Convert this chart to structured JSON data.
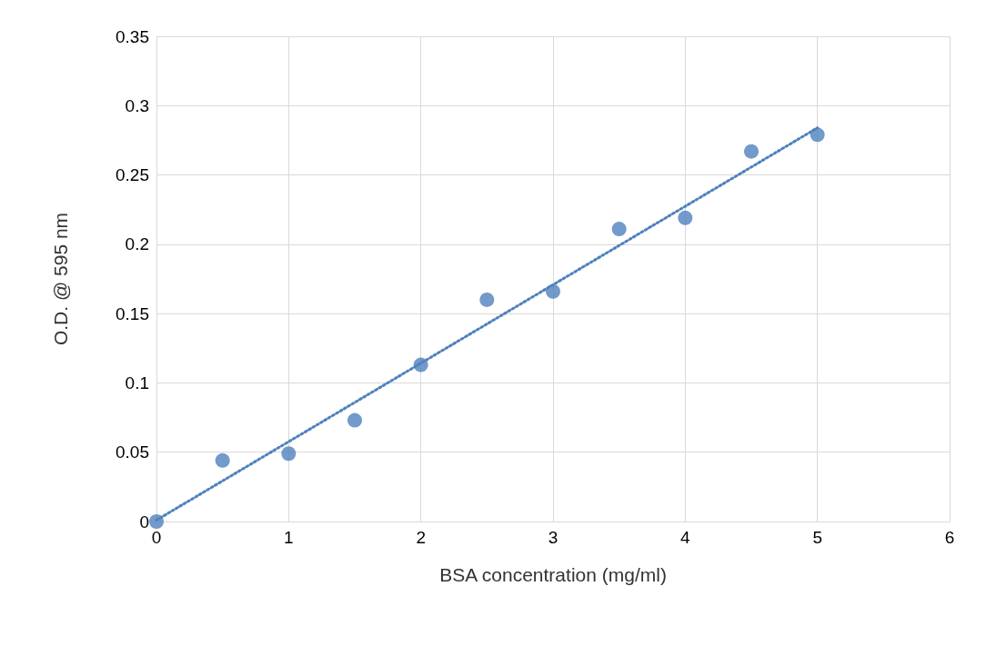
{
  "chart_data": {
    "type": "scatter",
    "xlabel": "BSA concentration (mg/ml)",
    "ylabel": "O.D. @ 595 nm",
    "xlim": [
      0,
      6
    ],
    "xticks": [
      0,
      1,
      2,
      3,
      4,
      5,
      6
    ],
    "ylim": [
      0,
      0.35
    ],
    "yticks": [
      0,
      0.05,
      0.1,
      0.15,
      0.2,
      0.25,
      0.3,
      0.35
    ],
    "grid": true,
    "marker": "circle",
    "series": [
      {
        "color": "#4f81bd",
        "x": [
          0,
          0.5,
          1,
          1.5,
          2,
          2.5,
          3,
          3.5,
          4,
          4.5,
          5
        ],
        "values": [
          0,
          0.044,
          0.049,
          0.073,
          0.113,
          0.16,
          0.166,
          0.211,
          0.219,
          0.267,
          0.279
        ]
      },
      {
        "type": "line",
        "color": "#4f81bd",
        "line_style": "dotted",
        "marker": "none",
        "x": [
          0,
          5
        ],
        "values": [
          0.001,
          0.284
        ]
      }
    ]
  }
}
